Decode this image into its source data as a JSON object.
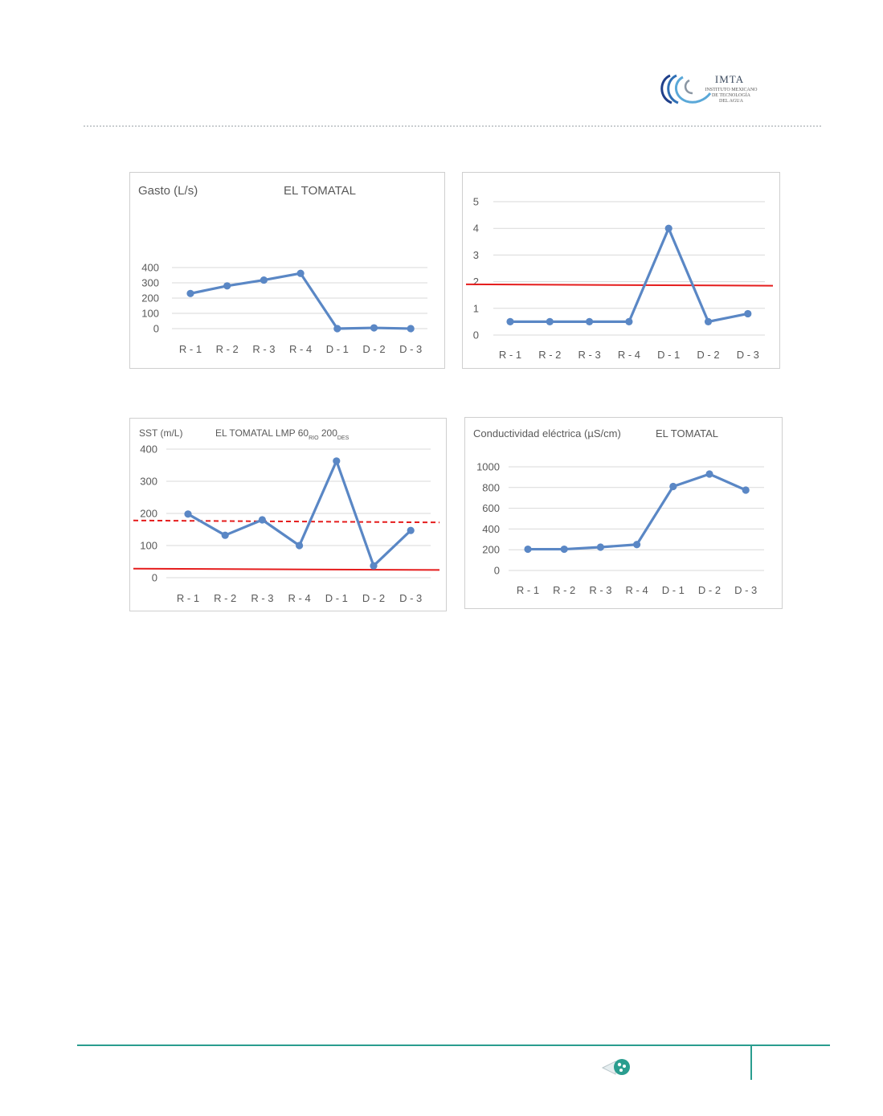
{
  "header": {
    "logo_title": "IMTA",
    "logo_sub_lines": [
      "INSTITUTO MEXICANO",
      "DE TECNOLOGÍA",
      "DEL AGUA"
    ]
  },
  "colors": {
    "series": "#5a87c5",
    "limit": "#e51d1d",
    "grid": "#d9d9d9",
    "text": "#595959",
    "footer": "#2a9d8f"
  },
  "chart_data": [
    {
      "type": "line",
      "title": "EL TOMATAL",
      "ylabel": "Gasto (L/s)",
      "categories": [
        "R - 1",
        "R - 2",
        "R - 3",
        "R - 4",
        "D - 1",
        "D - 2",
        "D - 3"
      ],
      "series": [
        {
          "values": [
            230,
            280,
            318,
            362,
            0,
            5,
            0
          ]
        }
      ],
      "ylim": [
        0,
        400
      ],
      "yticks": [
        0,
        100,
        200,
        300,
        400
      ],
      "grid": true,
      "reference_lines": []
    },
    {
      "type": "line",
      "title": "",
      "ylabel": "",
      "categories": [
        "R - 1",
        "R - 2",
        "R - 3",
        "R - 4",
        "D - 1",
        "D - 2",
        "D - 3"
      ],
      "series": [
        {
          "values": [
            0.5,
            0.5,
            0.5,
            0.5,
            4.0,
            0.5,
            0.8
          ]
        }
      ],
      "ylim": [
        0,
        5
      ],
      "yticks": [
        0,
        1,
        2,
        3,
        4,
        5
      ],
      "grid": true,
      "reference_lines": [
        {
          "style": "solid",
          "y_start": 1.9,
          "y_end": 1.85
        }
      ]
    },
    {
      "type": "line",
      "title": "EL TOMATAL  LMP 60",
      "title_sub1": "RIO",
      "title_mid": " 200",
      "title_sub2": "DES",
      "ylabel": "SST (m/L)",
      "categories": [
        "R - 1",
        "R - 2",
        "R - 3",
        "R - 4",
        "D - 1",
        "D - 2",
        "D - 3"
      ],
      "series": [
        {
          "values": [
            198,
            132,
            180,
            100,
            363,
            37,
            147
          ]
        }
      ],
      "ylim": [
        0,
        400
      ],
      "yticks": [
        0,
        100,
        200,
        300,
        400
      ],
      "grid": true,
      "reference_lines": [
        {
          "style": "dashed",
          "y_start": 178,
          "y_end": 172
        },
        {
          "style": "solid",
          "y_start": 28,
          "y_end": 24
        }
      ]
    },
    {
      "type": "line",
      "title": "EL TOMATAL",
      "ylabel": "Conductividad eléctrica (µS/cm)",
      "categories": [
        "R - 1",
        "R - 2",
        "R - 3",
        "R - 4",
        "D - 1",
        "D - 2",
        "D - 3"
      ],
      "series": [
        {
          "values": [
            205,
            205,
            225,
            250,
            810,
            930,
            775
          ]
        }
      ],
      "ylim": [
        0,
        1000
      ],
      "yticks": [
        0,
        200,
        400,
        600,
        800,
        1000
      ],
      "grid": true,
      "reference_lines": []
    }
  ]
}
